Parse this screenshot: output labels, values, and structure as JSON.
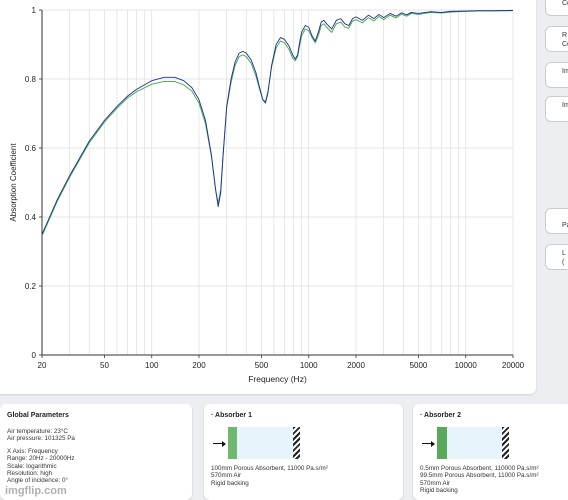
{
  "side_buttons": [
    {
      "text": "Co"
    },
    {
      "text": "R\nCo"
    },
    {
      "text": "Im"
    },
    {
      "text": "Im"
    },
    {
      "text": "Pa"
    },
    {
      "text": "L\n("
    }
  ],
  "chart_data": {
    "type": "line",
    "xscale": "log",
    "xlim": [
      20,
      20000
    ],
    "ylim": [
      0,
      1
    ],
    "xlabel": "Frequency (Hz)",
    "ylabel": "Absorption Coefficient",
    "xticks": [
      20,
      50,
      100,
      200,
      500,
      1000,
      2000,
      5000,
      10000,
      20000
    ],
    "xtick_labels": [
      "20",
      "50",
      "100",
      "200",
      "500",
      "1000",
      "2000",
      "5000",
      "10000",
      "20000"
    ],
    "yticks": [
      0,
      0.2,
      0.4,
      0.6,
      0.8,
      1
    ],
    "ytick_labels": [
      "0",
      "0.2",
      "0.4",
      "0.6",
      "0.8",
      "1"
    ],
    "series_colors": [
      "#1f2d9e",
      "#3aa83a"
    ],
    "series": [
      {
        "x": [
          20,
          25,
          30,
          40,
          50,
          60,
          70,
          80,
          100,
          120,
          140,
          160,
          180,
          200,
          220,
          240,
          255,
          265,
          275,
          285,
          300,
          320,
          340,
          360,
          380,
          400,
          430,
          460,
          490,
          510,
          530,
          550,
          580,
          620,
          660,
          700,
          750,
          790,
          820,
          850,
          870,
          900,
          950,
          1000,
          1050,
          1100,
          1150,
          1200,
          1250,
          1300,
          1400,
          1500,
          1600,
          1700,
          1800,
          1900,
          2000,
          2200,
          2400,
          2600,
          2800,
          3000,
          3300,
          3600,
          3900,
          4200,
          4500,
          5000,
          6000,
          7000,
          8000,
          10000,
          12000,
          15000,
          20000
        ],
        "y": [
          0.35,
          0.45,
          0.52,
          0.62,
          0.68,
          0.72,
          0.75,
          0.77,
          0.795,
          0.805,
          0.805,
          0.795,
          0.775,
          0.74,
          0.68,
          0.58,
          0.48,
          0.43,
          0.47,
          0.58,
          0.72,
          0.8,
          0.85,
          0.875,
          0.88,
          0.875,
          0.855,
          0.82,
          0.77,
          0.74,
          0.73,
          0.76,
          0.84,
          0.9,
          0.92,
          0.915,
          0.895,
          0.87,
          0.858,
          0.87,
          0.9,
          0.935,
          0.955,
          0.95,
          0.925,
          0.91,
          0.935,
          0.965,
          0.97,
          0.96,
          0.945,
          0.97,
          0.975,
          0.96,
          0.955,
          0.975,
          0.98,
          0.97,
          0.985,
          0.975,
          0.987,
          0.978,
          0.99,
          0.982,
          0.992,
          0.986,
          0.993,
          0.99,
          0.995,
          0.993,
          0.996,
          0.997,
          0.998,
          0.998,
          0.999
        ]
      },
      {
        "x": [
          20,
          25,
          30,
          40,
          50,
          60,
          70,
          80,
          100,
          120,
          140,
          160,
          180,
          200,
          220,
          240,
          255,
          265,
          275,
          285,
          300,
          320,
          340,
          360,
          380,
          400,
          430,
          460,
          490,
          510,
          530,
          550,
          580,
          620,
          660,
          700,
          750,
          790,
          820,
          850,
          870,
          900,
          950,
          1000,
          1050,
          1100,
          1150,
          1200,
          1250,
          1300,
          1400,
          1500,
          1600,
          1700,
          1800,
          1900,
          2000,
          2200,
          2400,
          2600,
          2800,
          3000,
          3300,
          3600,
          3900,
          4200,
          4500,
          5000,
          6000,
          7000,
          8000,
          10000,
          12000,
          15000,
          20000
        ],
        "y": [
          0.345,
          0.445,
          0.515,
          0.615,
          0.675,
          0.715,
          0.745,
          0.763,
          0.785,
          0.793,
          0.793,
          0.783,
          0.765,
          0.73,
          0.67,
          0.575,
          0.48,
          0.44,
          0.48,
          0.585,
          0.715,
          0.79,
          0.84,
          0.865,
          0.87,
          0.865,
          0.845,
          0.81,
          0.765,
          0.74,
          0.735,
          0.765,
          0.835,
          0.89,
          0.91,
          0.905,
          0.885,
          0.86,
          0.853,
          0.865,
          0.89,
          0.925,
          0.945,
          0.94,
          0.92,
          0.905,
          0.925,
          0.955,
          0.96,
          0.95,
          0.935,
          0.96,
          0.965,
          0.95,
          0.947,
          0.968,
          0.972,
          0.963,
          0.978,
          0.968,
          0.981,
          0.972,
          0.985,
          0.977,
          0.988,
          0.982,
          0.99,
          0.987,
          0.993,
          0.991,
          0.994,
          0.996,
          0.997,
          0.997,
          0.998
        ]
      }
    ]
  },
  "global_params": {
    "title": "Global Parameters",
    "air_temp": "Air temperature: 23°C",
    "air_pressure": "Air pressure: 101325 Pa",
    "x_axis": "X Axis: Frequency",
    "range": "Range: 20Hz - 20000Hz",
    "scale": "Scale: logarithmic",
    "resolution": "Resolution: high",
    "angle": "Angle of incidence: 0°"
  },
  "absorber1": {
    "title": "· Absorber 1",
    "layer1": "100mm Porous Absorbent, 11000 Pa.s/m²",
    "layer2": "570mm Air",
    "backing": "Rigid backing"
  },
  "absorber2": {
    "title": "· Absorber 2",
    "layer1": "0.5mm Porous Absorbent, 110000 Pa.s/m²",
    "layer2": "99.5mm Porous Absorbent, 11000 Pa.s/m²",
    "layer3": "570mm Air",
    "backing": "Rigid backing"
  },
  "watermark": "imgflip.com"
}
